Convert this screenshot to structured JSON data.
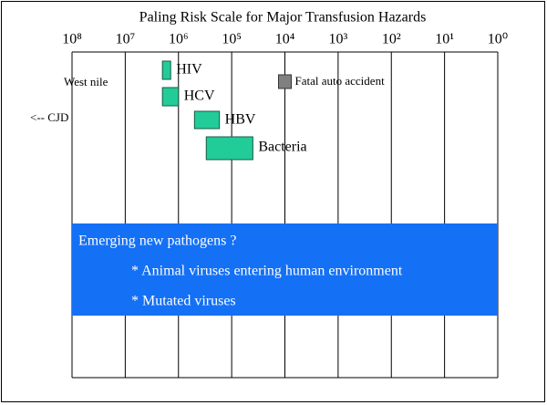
{
  "chart_data": {
    "type": "range_bar",
    "title": "Paling Risk Scale for Major Transfusion Hazards",
    "xscale": "log",
    "xlim": [
      100000000,
      1
    ],
    "xticks": [
      {
        "value": 100000000,
        "label": "10⁸"
      },
      {
        "value": 10000000,
        "label": "10⁷"
      },
      {
        "value": 1000000,
        "label": "10⁶"
      },
      {
        "value": 100000,
        "label": "10⁵"
      },
      {
        "value": 10000,
        "label": "10⁴"
      },
      {
        "value": 1000,
        "label": "10³"
      },
      {
        "value": 100,
        "label": "10²"
      },
      {
        "value": 10,
        "label": "10¹"
      },
      {
        "value": 1,
        "label": "10⁰"
      }
    ],
    "grid": true,
    "bars": [
      {
        "name": "HIV",
        "range": [
          2000000,
          1400000
        ],
        "color": "#22cc99"
      },
      {
        "name": "HCV",
        "range": [
          2000000,
          1000000
        ],
        "color": "#22cc99"
      },
      {
        "name": "HBV",
        "range": [
          500000,
          170000
        ],
        "color": "#22cc99"
      },
      {
        "name": "Bacteria",
        "range": [
          300000,
          40000
        ],
        "color": "#22cc99"
      }
    ],
    "markers": [
      {
        "name": "Fatal auto accident",
        "value": 10000,
        "color": "#808080"
      }
    ],
    "annotations": [
      "West nile",
      "<-- CJD"
    ],
    "callout": {
      "color": "#1470f5",
      "title": "Emerging new pathogens ?",
      "items": [
        "* Animal viruses entering human environment",
        "* Mutated viruses"
      ]
    }
  }
}
